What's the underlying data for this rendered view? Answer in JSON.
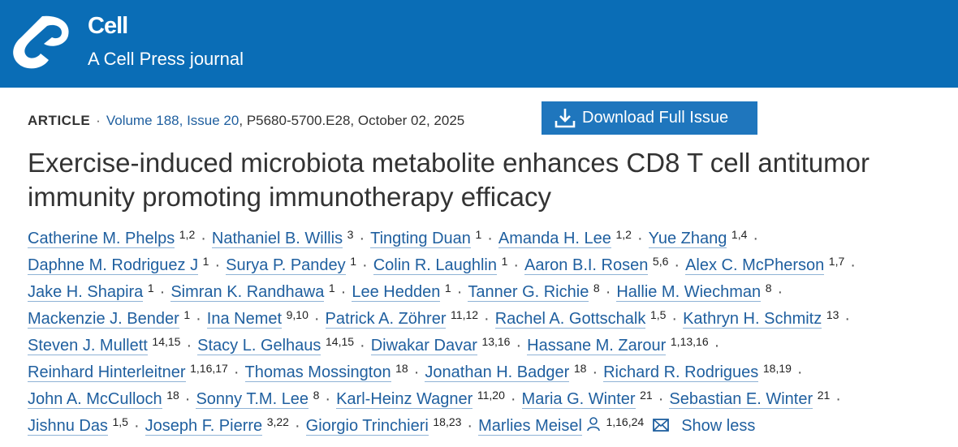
{
  "header": {
    "brand": "Cell",
    "tagline": "A Cell Press journal"
  },
  "meta": {
    "type": "ARTICLE",
    "issue": "Volume 188, Issue 20",
    "details": "P5680-5700.E28, October 02, 2025"
  },
  "download_button": "Download Full Issue",
  "title": "Exercise-induced microbiota metabolite enhances CD8 T cell antitumor immunity promoting immunotherapy efficacy",
  "authors": [
    {
      "name": "Catherine M. Phelps",
      "affil": "1,2"
    },
    {
      "name": "Nathaniel B. Willis",
      "affil": "3"
    },
    {
      "name": "Tingting Duan",
      "affil": "1"
    },
    {
      "name": "Amanda H. Lee",
      "affil": "1,2"
    },
    {
      "name": "Yue Zhang",
      "affil": "1,4"
    },
    {
      "name": "Daphne M. Rodriguez J",
      "affil": "1"
    },
    {
      "name": "Surya P. Pandey",
      "affil": "1"
    },
    {
      "name": "Colin R. Laughlin",
      "affil": "1"
    },
    {
      "name": "Aaron B.I. Rosen",
      "affil": "5,6"
    },
    {
      "name": "Alex C. McPherson",
      "affil": "1,7"
    },
    {
      "name": "Jake H. Shapira",
      "affil": "1"
    },
    {
      "name": "Simran K. Randhawa",
      "affil": "1"
    },
    {
      "name": "Lee Hedden",
      "affil": "1"
    },
    {
      "name": "Tanner G. Richie",
      "affil": "8"
    },
    {
      "name": "Hallie M. Wiechman",
      "affil": "8"
    },
    {
      "name": "Mackenzie J. Bender",
      "affil": "1"
    },
    {
      "name": "Ina Nemet",
      "affil": "9,10"
    },
    {
      "name": "Patrick A. Zöhrer",
      "affil": "11,12"
    },
    {
      "name": "Rachel A. Gottschalk",
      "affil": "1,5"
    },
    {
      "name": "Kathryn H. Schmitz",
      "affil": "13"
    },
    {
      "name": "Steven J. Mullett",
      "affil": "14,15"
    },
    {
      "name": "Stacy L. Gelhaus",
      "affil": "14,15"
    },
    {
      "name": "Diwakar Davar",
      "affil": "13,16"
    },
    {
      "name": "Hassane M. Zarour",
      "affil": "1,13,16"
    },
    {
      "name": "Reinhard Hinterleitner",
      "affil": "1,16,17"
    },
    {
      "name": "Thomas Mossington",
      "affil": "18"
    },
    {
      "name": "Jonathan H. Badger",
      "affil": "18"
    },
    {
      "name": "Richard R. Rodrigues",
      "affil": "18,19"
    },
    {
      "name": "John A. McCulloch",
      "affil": "18"
    },
    {
      "name": "Sonny T.M. Lee",
      "affil": "8"
    },
    {
      "name": "Karl-Heinz Wagner",
      "affil": "11,20"
    },
    {
      "name": "Maria G. Winter",
      "affil": "21"
    },
    {
      "name": "Sebastian E. Winter",
      "affil": "21"
    },
    {
      "name": "Jishnu Das",
      "affil": "1,5"
    },
    {
      "name": "Joseph F. Pierre",
      "affil": "3,22"
    },
    {
      "name": "Giorgio Trinchieri",
      "affil": "18,23"
    },
    {
      "name": "Marlies Meisel",
      "affil": "1,16,24"
    }
  ],
  "show_less": "Show less"
}
